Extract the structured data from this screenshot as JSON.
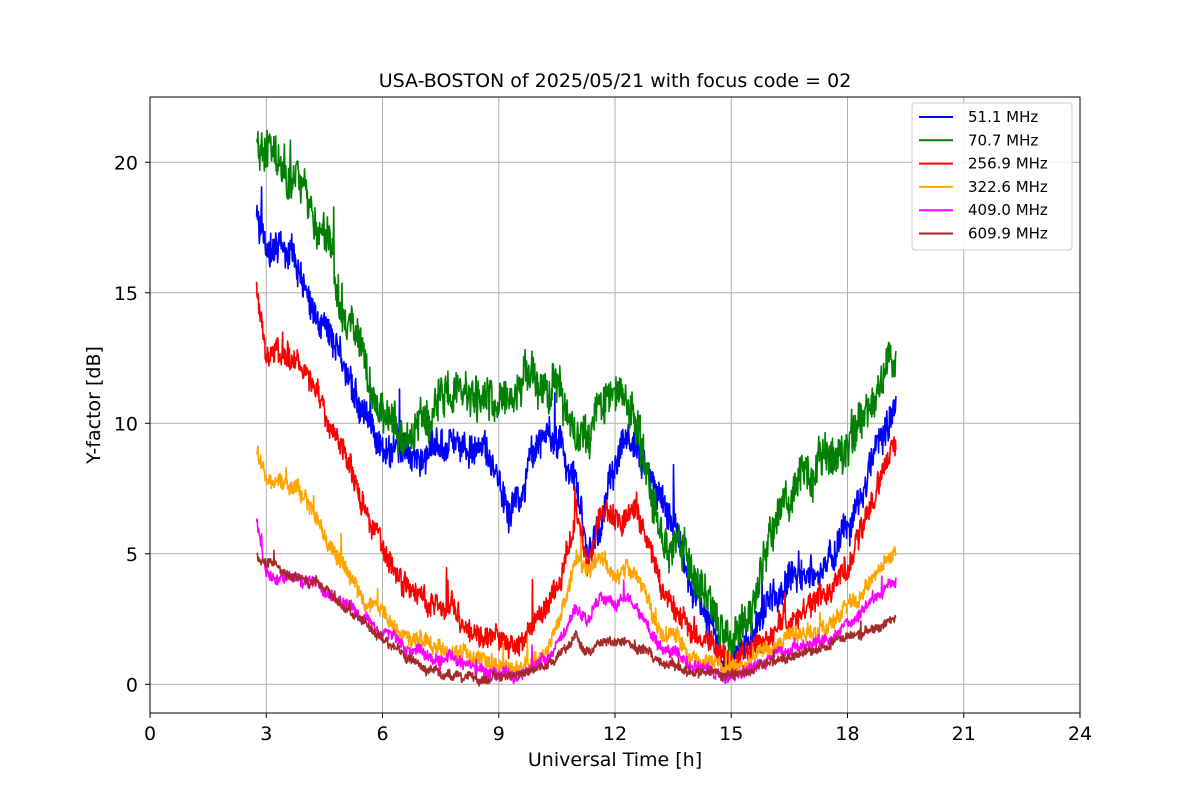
{
  "chart_data": {
    "type": "line",
    "title": "USA-BOSTON of 2025/05/21 with focus code = 02",
    "xlabel": "Universal Time [h]",
    "ylabel": "Y-factor [dB]",
    "xlim": [
      0,
      24
    ],
    "ylim": [
      -1.1,
      22.5
    ],
    "xticks": [
      0,
      3,
      6,
      9,
      12,
      15,
      18,
      21,
      24
    ],
    "yticks": [
      0,
      5,
      10,
      15,
      20
    ],
    "grid": true,
    "legend_position": "top-right",
    "series": [
      {
        "name": " 51.1 MHz",
        "color": "#0000ff",
        "noise": 0.6,
        "x": [
          2.75,
          3.0,
          3.5,
          4.0,
          4.3,
          4.6,
          5.0,
          5.3,
          5.6,
          6.0,
          6.5,
          7.0,
          7.5,
          8.0,
          8.5,
          9.0,
          9.3,
          9.6,
          10.0,
          10.3,
          10.6,
          11.0,
          11.3,
          11.6,
          12.0,
          12.3,
          12.6,
          13.0,
          13.3,
          13.6,
          14.0,
          14.5,
          14.8,
          15.0,
          15.3,
          15.6,
          16.0,
          16.5,
          17.0,
          17.5,
          18.0,
          18.5,
          19.0,
          19.25
        ],
        "y": [
          18.0,
          16.8,
          16.6,
          15.5,
          14.2,
          13.5,
          12.0,
          11.0,
          10.5,
          9.2,
          8.9,
          8.5,
          9.0,
          9.4,
          9.0,
          7.5,
          6.2,
          7.2,
          9.5,
          9.6,
          9.2,
          7.8,
          5.0,
          6.2,
          8.5,
          9.8,
          9.2,
          7.5,
          6.5,
          6.0,
          3.5,
          2.5,
          1.0,
          0.8,
          1.5,
          2.0,
          3.5,
          4.0,
          4.5,
          4.8,
          5.8,
          7.5,
          9.8,
          10.8
        ]
      },
      {
        "name": " 70.7 MHz",
        "color": "#008000",
        "noise": 0.75,
        "x": [
          2.75,
          3.0,
          3.5,
          4.0,
          4.3,
          4.6,
          5.0,
          5.3,
          5.6,
          6.0,
          6.5,
          7.0,
          7.5,
          8.0,
          8.5,
          9.0,
          9.3,
          9.6,
          10.0,
          10.3,
          10.6,
          11.0,
          11.3,
          11.6,
          12.0,
          12.3,
          12.6,
          13.0,
          13.3,
          13.6,
          14.0,
          14.5,
          14.8,
          15.0,
          15.3,
          15.6,
          16.0,
          16.5,
          17.0,
          17.5,
          18.0,
          18.5,
          19.0,
          19.25
        ],
        "y": [
          20.6,
          20.3,
          20.0,
          19.0,
          17.3,
          16.8,
          14.0,
          13.0,
          11.5,
          10.2,
          9.8,
          10.0,
          10.8,
          11.0,
          11.2,
          10.2,
          10.8,
          11.5,
          12.0,
          11.5,
          11.0,
          9.5,
          9.0,
          10.5,
          11.0,
          10.8,
          10.0,
          7.0,
          5.0,
          5.5,
          4.5,
          3.0,
          2.5,
          1.5,
          2.5,
          3.0,
          6.0,
          7.5,
          8.0,
          8.5,
          9.0,
          10.5,
          12.0,
          12.2
        ]
      },
      {
        "name": " 256.9 MHz",
        "color": "#ff0000",
        "noise": 0.45,
        "x": [
          2.75,
          3.0,
          3.5,
          4.0,
          4.3,
          4.6,
          5.0,
          5.3,
          5.6,
          6.0,
          6.5,
          7.0,
          7.5,
          8.0,
          8.5,
          9.0,
          9.3,
          9.6,
          10.0,
          10.3,
          10.6,
          11.0,
          11.3,
          11.6,
          12.0,
          12.3,
          12.6,
          13.0,
          13.3,
          13.6,
          14.0,
          14.5,
          14.8,
          15.0,
          15.3,
          15.6,
          16.0,
          16.5,
          17.0,
          17.5,
          18.0,
          18.5,
          19.0,
          19.25
        ],
        "y": [
          15.0,
          12.8,
          12.8,
          12.0,
          11.3,
          10.0,
          8.8,
          7.5,
          6.5,
          5.2,
          4.0,
          3.3,
          2.8,
          2.5,
          2.0,
          1.7,
          1.5,
          1.8,
          2.5,
          3.0,
          4.0,
          6.5,
          4.5,
          6.5,
          6.0,
          6.5,
          6.5,
          4.5,
          3.5,
          3.0,
          2.0,
          1.5,
          1.2,
          0.9,
          1.0,
          1.3,
          2.2,
          2.5,
          3.2,
          3.5,
          4.5,
          6.5,
          8.5,
          9.2
        ]
      },
      {
        "name": " 322.6 MHz",
        "color": "#ffa500",
        "noise": 0.3,
        "x": [
          2.75,
          3.0,
          3.5,
          4.0,
          4.3,
          4.6,
          5.0,
          5.3,
          5.6,
          6.0,
          6.5,
          7.0,
          7.5,
          8.0,
          8.5,
          9.0,
          9.3,
          9.6,
          10.0,
          10.3,
          10.6,
          11.0,
          11.3,
          11.6,
          12.0,
          12.3,
          12.6,
          13.0,
          13.3,
          13.6,
          14.0,
          14.5,
          14.8,
          15.0,
          15.3,
          15.6,
          16.0,
          16.5,
          17.0,
          17.5,
          18.0,
          18.5,
          19.0,
          19.25
        ],
        "y": [
          9.0,
          7.8,
          7.8,
          7.2,
          6.5,
          5.3,
          4.5,
          3.8,
          3.0,
          2.8,
          2.0,
          1.8,
          1.4,
          1.2,
          1.0,
          0.8,
          0.7,
          0.8,
          1.0,
          1.5,
          2.5,
          5.0,
          4.2,
          4.8,
          4.0,
          4.5,
          4.2,
          2.5,
          2.0,
          1.8,
          1.0,
          0.8,
          0.7,
          0.6,
          0.8,
          1.0,
          1.5,
          1.8,
          2.0,
          2.2,
          3.0,
          3.8,
          4.8,
          5.0
        ]
      },
      {
        "name": " 409.0 MHz",
        "color": "#ff00ff",
        "noise": 0.22,
        "x": [
          2.75,
          3.0,
          3.5,
          4.0,
          4.3,
          4.6,
          5.0,
          5.3,
          5.6,
          6.0,
          6.5,
          7.0,
          7.5,
          8.0,
          8.5,
          9.0,
          9.3,
          9.6,
          10.0,
          10.3,
          10.6,
          11.0,
          11.3,
          11.6,
          12.0,
          12.3,
          12.6,
          13.0,
          13.3,
          13.6,
          14.0,
          14.5,
          14.8,
          15.0,
          15.3,
          15.6,
          16.0,
          16.5,
          17.0,
          17.5,
          18.0,
          18.5,
          19.0,
          19.25
        ],
        "y": [
          6.3,
          4.3,
          4.2,
          4.0,
          3.8,
          3.5,
          3.0,
          2.7,
          2.5,
          2.0,
          1.5,
          1.2,
          1.0,
          0.8,
          0.6,
          0.4,
          0.4,
          0.5,
          0.7,
          1.0,
          1.8,
          3.0,
          2.5,
          3.2,
          3.0,
          3.3,
          3.0,
          1.8,
          1.3,
          1.2,
          0.7,
          0.4,
          0.3,
          0.3,
          0.5,
          0.7,
          1.0,
          1.3,
          1.5,
          1.7,
          2.3,
          3.0,
          3.8,
          4.0
        ]
      },
      {
        "name": " 609.9 MHz",
        "color": "#a52a2a",
        "noise": 0.18,
        "x": [
          2.75,
          3.0,
          3.5,
          4.0,
          4.3,
          4.6,
          5.0,
          5.3,
          5.6,
          6.0,
          6.5,
          7.0,
          7.5,
          8.0,
          8.5,
          9.0,
          9.3,
          9.6,
          10.0,
          10.3,
          10.6,
          11.0,
          11.3,
          11.6,
          12.0,
          12.3,
          12.6,
          13.0,
          13.3,
          13.6,
          14.0,
          14.5,
          14.8,
          15.0,
          15.3,
          15.6,
          16.0,
          16.5,
          17.0,
          17.5,
          18.0,
          18.5,
          19.0,
          19.25
        ],
        "y": [
          5.0,
          4.6,
          4.3,
          4.0,
          3.8,
          3.6,
          3.0,
          2.6,
          2.3,
          1.8,
          1.2,
          0.6,
          0.4,
          0.3,
          0.2,
          0.3,
          0.3,
          0.4,
          0.6,
          0.8,
          1.2,
          1.8,
          1.2,
          1.6,
          1.5,
          1.6,
          1.5,
          1.0,
          0.8,
          0.7,
          0.5,
          0.4,
          0.3,
          0.3,
          0.4,
          0.6,
          0.9,
          1.1,
          1.3,
          1.5,
          1.8,
          2.0,
          2.3,
          2.5
        ]
      }
    ]
  }
}
